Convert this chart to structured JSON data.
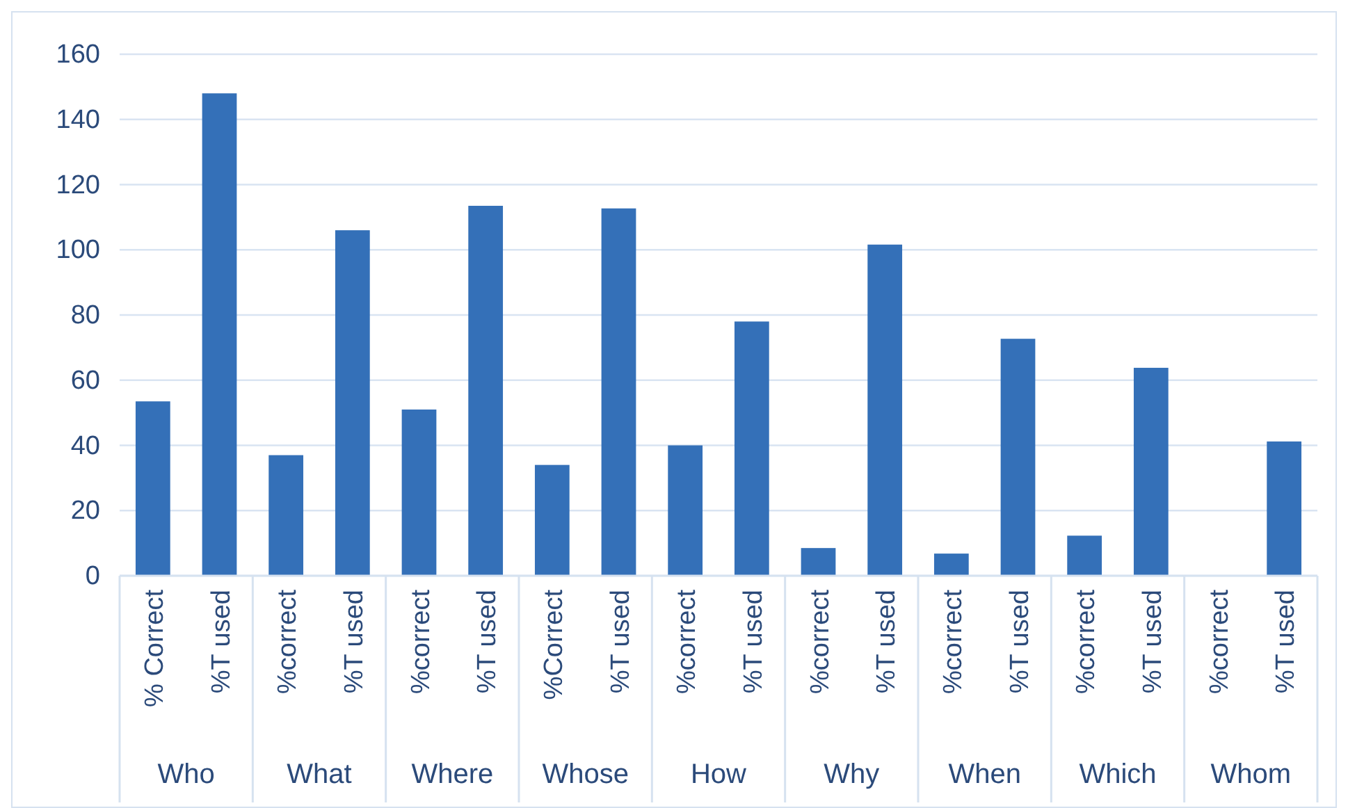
{
  "chart_data": {
    "type": "bar",
    "categories": [
      "% Correct",
      "%T used",
      "%correct",
      "%T used",
      "%correct",
      "%T used",
      "%Correct",
      "%T used",
      "%correct",
      "%T used",
      "%correct",
      "%T used",
      "%correct",
      "%T used",
      "%correct",
      "%T used",
      "%correct",
      "%T used"
    ],
    "values": [
      53.5,
      148,
      37,
      106,
      51,
      113.5,
      34,
      112.7,
      40,
      78,
      8.5,
      101.6,
      6.8,
      72.7,
      12.3,
      63.8,
      0,
      41.2
    ],
    "color": "#3470b8",
    "ylim": [
      0,
      160
    ],
    "yticks": [
      0,
      20,
      40,
      60,
      80,
      100,
      120,
      140,
      160
    ],
    "grid": "y",
    "annotations": [
      "Who",
      "What",
      "Where",
      "Whose",
      "How",
      "Why",
      "When",
      "Which",
      "Whom"
    ]
  }
}
